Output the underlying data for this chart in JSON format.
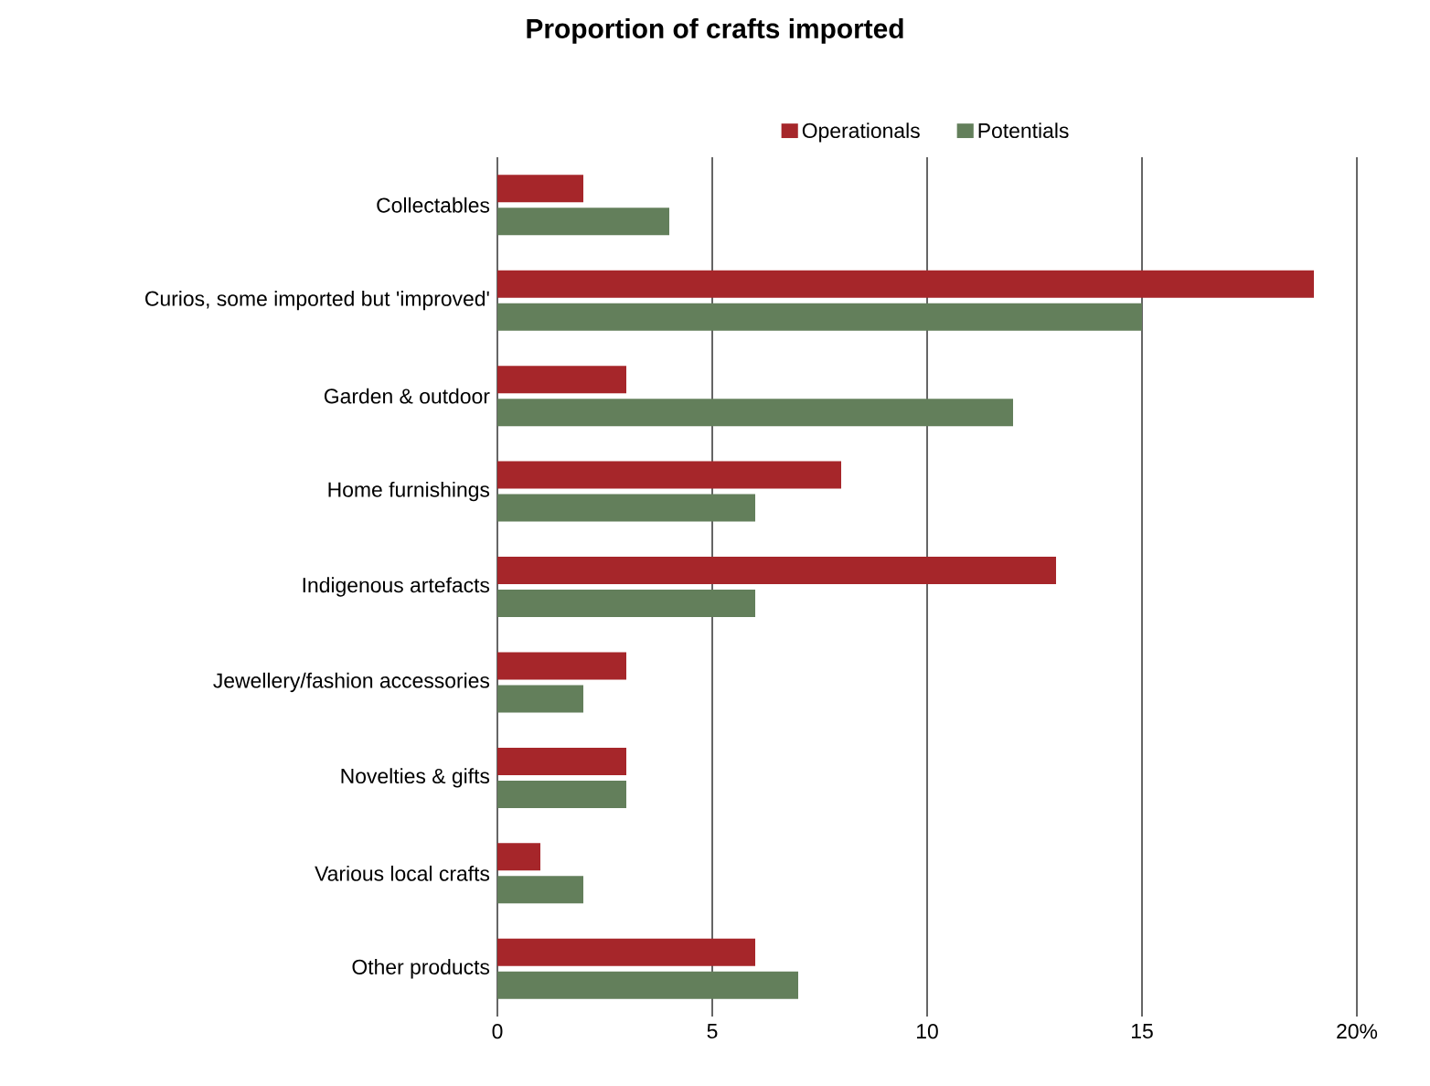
{
  "chart_data": {
    "type": "bar",
    "orientation": "horizontal",
    "title": "Proportion of crafts imported",
    "categories": [
      "Collectables",
      "Curios, some imported but 'improved'",
      "Garden & outdoor",
      "Home furnishings",
      "Indigenous artefacts",
      "Jewellery/fashion accessories",
      "Novelties & gifts",
      "Various local crafts",
      "Other products"
    ],
    "series": [
      {
        "name": "Operationals",
        "color": "#a6262a",
        "values": [
          2,
          19,
          3,
          8,
          13,
          3,
          3,
          1,
          6
        ]
      },
      {
        "name": "Potentials",
        "color": "#637f5b",
        "values": [
          4,
          15,
          12,
          6,
          6,
          2,
          3,
          2,
          7
        ]
      }
    ],
    "xlim": [
      0,
      20
    ],
    "xticks": [
      0,
      5,
      10,
      15,
      {
        "value": 20,
        "label": "20%"
      }
    ],
    "grid": "x",
    "legend": "top"
  }
}
